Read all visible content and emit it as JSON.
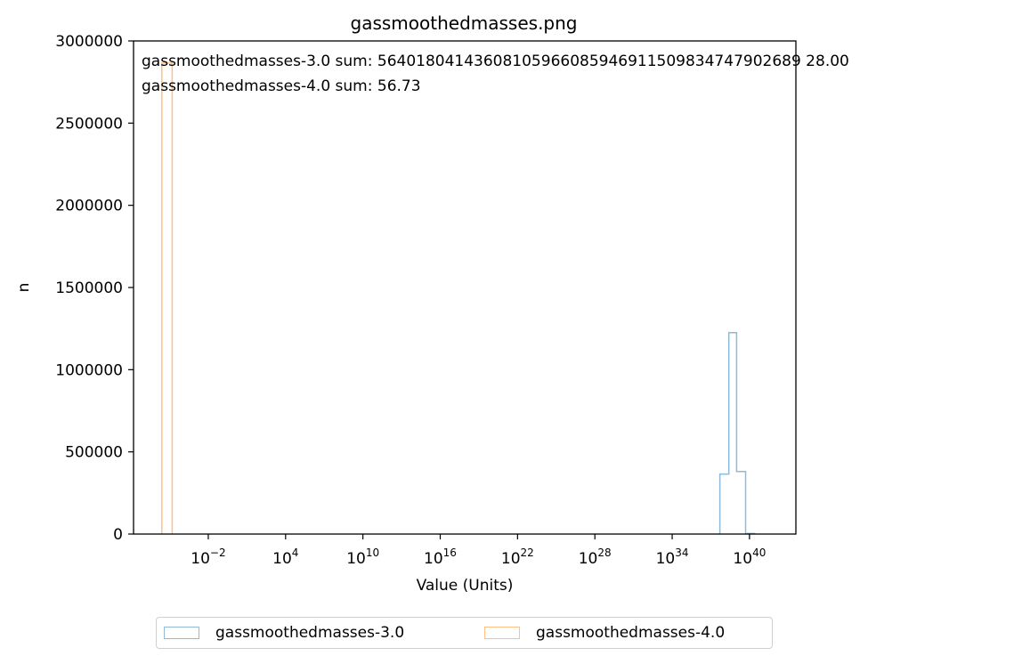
{
  "chart_data": {
    "type": "histogram",
    "title": "gassmoothedmasses.png",
    "xlabel": "Value (Units)",
    "ylabel": "n",
    "x_scale": "log",
    "x_tick_labels": [
      {
        "base": "10",
        "exp": "−2",
        "log10": -2
      },
      {
        "base": "10",
        "exp": "4",
        "log10": 4
      },
      {
        "base": "10",
        "exp": "10",
        "log10": 10
      },
      {
        "base": "10",
        "exp": "16",
        "log10": 16
      },
      {
        "base": "10",
        "exp": "22",
        "log10": 22
      },
      {
        "base": "10",
        "exp": "28",
        "log10": 28
      },
      {
        "base": "10",
        "exp": "34",
        "log10": 34
      },
      {
        "base": "10",
        "exp": "40",
        "log10": 40
      }
    ],
    "y_ticks": [
      0,
      500000,
      1000000,
      1500000,
      2000000,
      2500000,
      3000000
    ],
    "y_tick_labels": [
      "0",
      "500000",
      "1000000",
      "1500000",
      "2000000",
      "2500000",
      "3000000"
    ],
    "ylim": [
      0,
      3000000
    ],
    "xlim_log10": [
      -7.8,
      43.6
    ],
    "grid": false,
    "legend_placement": "below plot",
    "annotations": [
      "gassmoothedmasses-3.0 sum: 56401804143608105966085946911509834747902689 28.00",
      "gassmoothedmasses-4.0 sum: 56.73"
    ],
    "series": [
      {
        "name": "gassmoothedmasses-3.0",
        "color": "#1f77b4",
        "bin_edges_log10": [
          37.7,
          38.4,
          39.0,
          39.7,
          40.4
        ],
        "counts": [
          365000,
          1225000,
          380000,
          3000
        ]
      },
      {
        "name": "gassmoothedmasses-4.0",
        "color": "#ff7f0e",
        "bin_edges_log10": [
          -5.6,
          -4.8
        ],
        "counts": [
          2865000
        ]
      }
    ]
  }
}
